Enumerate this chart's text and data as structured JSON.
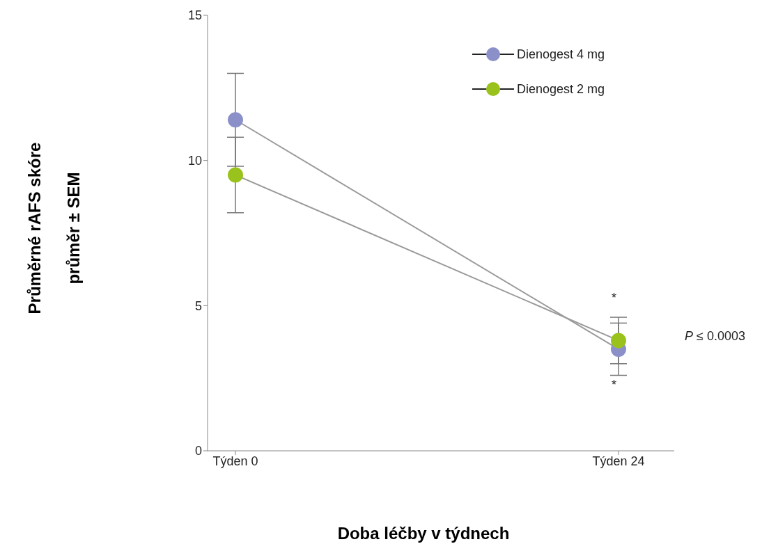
{
  "chart_data": {
    "type": "line",
    "xlabel": "Doba léčby v týdnech",
    "ylabel": "Průměrné rAFS skóre\nprůměr ± SEM",
    "categories": [
      "Týden 0",
      "Týden 24"
    ],
    "series": [
      {
        "name": "Dienogest 4 mg",
        "color": "#8b90c9",
        "values": [
          11.4,
          3.5
        ],
        "errors": [
          1.6,
          0.9
        ]
      },
      {
        "name": "Dienogest 2 mg",
        "color": "#99c31c",
        "values": [
          9.5,
          3.8
        ],
        "errors": [
          1.3,
          0.8
        ]
      }
    ],
    "ylim": [
      0,
      15
    ],
    "yticks": [
      0,
      5,
      10,
      15
    ],
    "grid": false,
    "legend": "top right",
    "marker": "circle",
    "annotations": [
      "*",
      "*",
      "P ≤ 0.0003"
    ]
  }
}
